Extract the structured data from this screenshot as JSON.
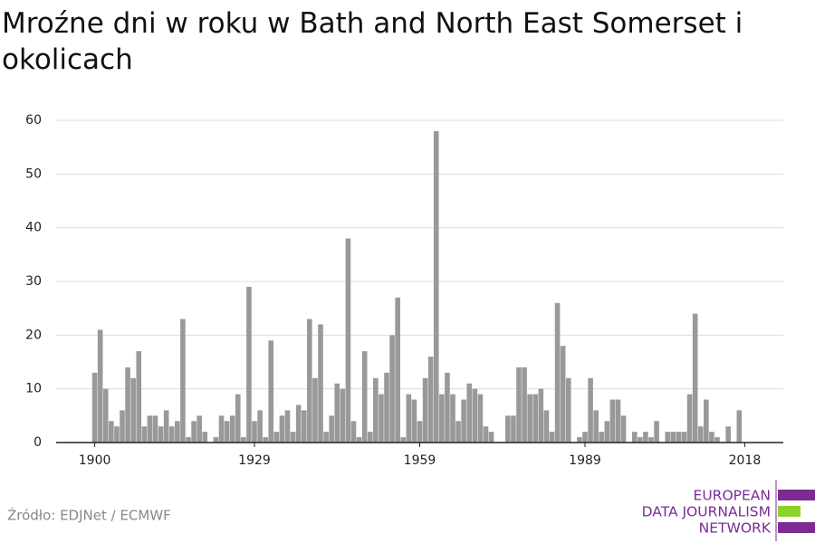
{
  "chart_data": {
    "type": "bar",
    "title": "Mroźne dni w roku w Bath and North East Somerset i okolicach",
    "source": "Źródło: EDJNet / ECMWF",
    "logo": [
      "EUROPEAN",
      "DATA JOURNALISM",
      "NETWORK"
    ],
    "color": "#999999",
    "x": [
      1900,
      1901,
      1902,
      1903,
      1904,
      1905,
      1906,
      1907,
      1908,
      1909,
      1910,
      1911,
      1912,
      1913,
      1914,
      1915,
      1916,
      1917,
      1918,
      1919,
      1920,
      1921,
      1922,
      1923,
      1924,
      1925,
      1926,
      1927,
      1928,
      1929,
      1930,
      1931,
      1932,
      1933,
      1934,
      1935,
      1936,
      1937,
      1938,
      1939,
      1940,
      1941,
      1942,
      1943,
      1944,
      1945,
      1946,
      1947,
      1948,
      1949,
      1950,
      1951,
      1952,
      1953,
      1954,
      1955,
      1956,
      1957,
      1958,
      1959,
      1960,
      1961,
      1962,
      1963,
      1964,
      1965,
      1966,
      1967,
      1968,
      1969,
      1970,
      1971,
      1972,
      1973,
      1974,
      1975,
      1976,
      1977,
      1978,
      1979,
      1980,
      1981,
      1982,
      1983,
      1984,
      1985,
      1986,
      1987,
      1988,
      1989,
      1990,
      1991,
      1992,
      1993,
      1994,
      1995,
      1996,
      1997,
      1998,
      1999,
      2000,
      2001,
      2002,
      2003,
      2004,
      2005,
      2006,
      2007,
      2008,
      2009,
      2010,
      2011,
      2012,
      2013,
      2014,
      2015,
      2016,
      2017,
      2018
    ],
    "values": [
      13,
      21,
      10,
      4,
      3,
      6,
      14,
      12,
      17,
      3,
      5,
      5,
      3,
      6,
      3,
      4,
      23,
      1,
      4,
      5,
      2,
      0,
      1,
      5,
      4,
      5,
      9,
      1,
      29,
      4,
      6,
      1,
      19,
      2,
      5,
      6,
      2,
      7,
      6,
      23,
      12,
      22,
      2,
      5,
      11,
      10,
      38,
      4,
      1,
      17,
      2,
      12,
      9,
      13,
      20,
      27,
      1,
      9,
      8,
      4,
      12,
      16,
      58,
      9,
      13,
      9,
      4,
      8,
      11,
      10,
      9,
      3,
      2,
      0,
      0,
      5,
      5,
      14,
      14,
      9,
      9,
      10,
      6,
      2,
      26,
      18,
      12,
      0,
      1,
      2,
      12,
      6,
      2,
      4,
      8,
      8,
      5,
      0,
      2,
      1,
      2,
      1,
      4,
      0,
      2,
      2,
      2,
      2,
      9,
      24,
      3,
      8,
      2,
      1,
      0,
      3,
      0,
      6,
      0
    ],
    "xlim": [
      1893,
      2025
    ],
    "xticks": [
      1900,
      1929,
      1959,
      1989,
      2018
    ],
    "ylim": [
      0,
      60
    ],
    "yticks": [
      0,
      10,
      20,
      30,
      40,
      50,
      60
    ],
    "grid": true
  }
}
